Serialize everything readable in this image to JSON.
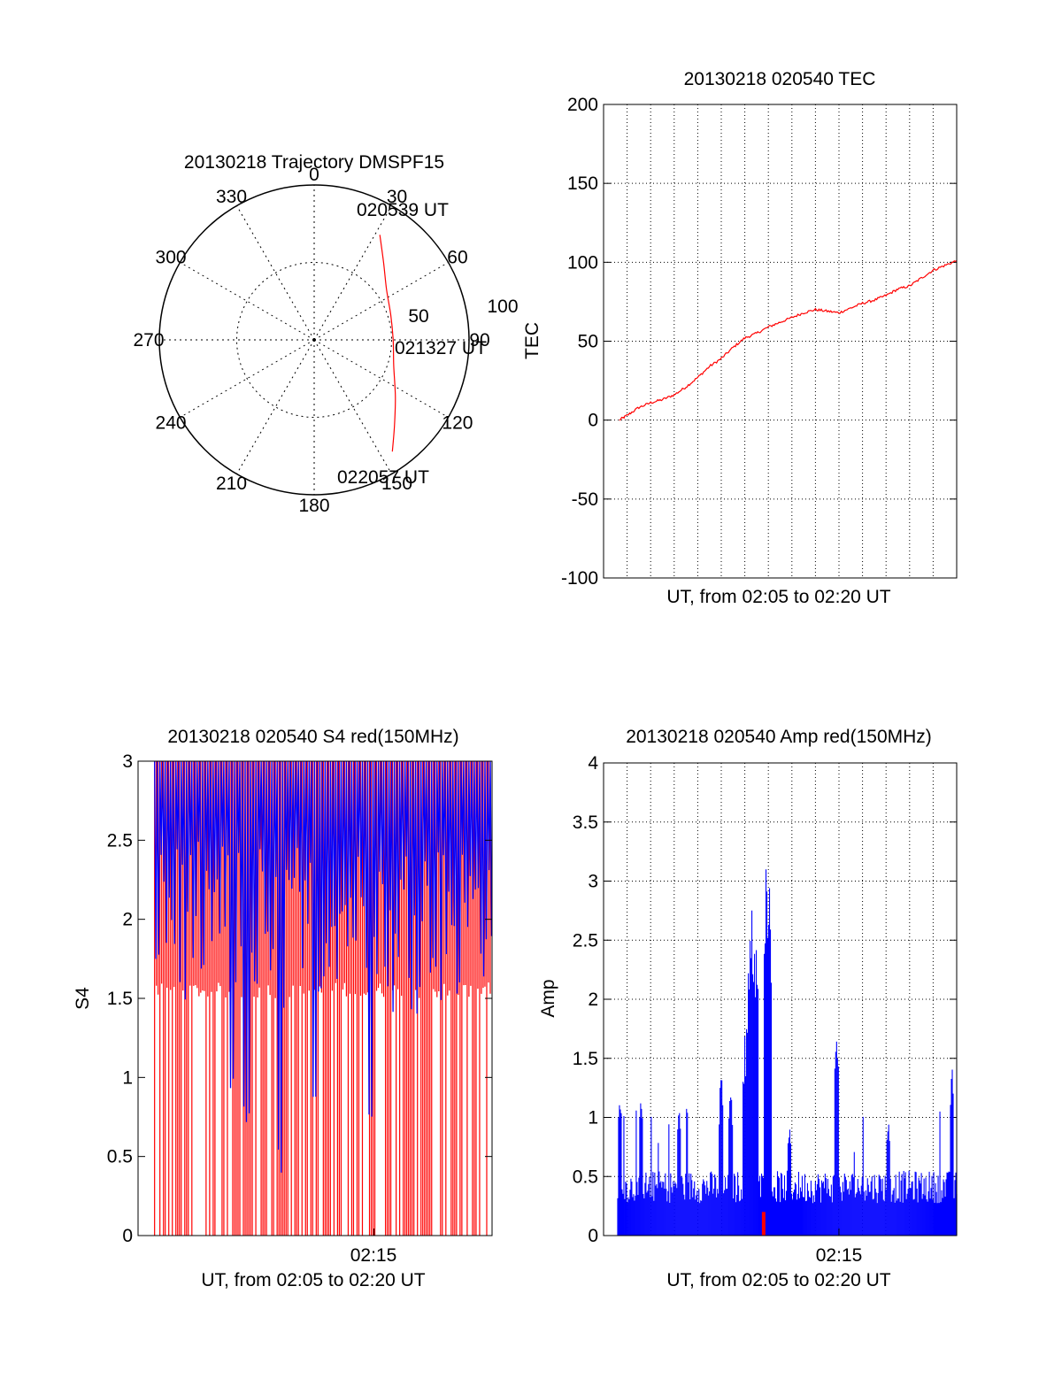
{
  "chart_data": [
    {
      "id": "trajectory",
      "type": "polar",
      "title": "20130218 Trajectory DMSPF15",
      "angle_labels": [
        "0",
        "30",
        "60",
        "90",
        "120",
        "150",
        "180",
        "210",
        "240",
        "270",
        "300",
        "330"
      ],
      "radius_labels": [
        "50",
        "100"
      ],
      "rmax": 100,
      "series": [
        {
          "color": "#ff0000",
          "points": [
            {
              "az": 32,
              "r": 80
            },
            {
              "az": 42,
              "r": 67
            },
            {
              "az": 55,
              "r": 57
            },
            {
              "az": 72,
              "r": 52
            },
            {
              "az": 90,
              "r": 51
            },
            {
              "az": 108,
              "r": 54
            },
            {
              "az": 125,
              "r": 64
            },
            {
              "az": 137,
              "r": 76
            },
            {
              "az": 145,
              "r": 88
            }
          ]
        }
      ],
      "annotations": [
        "020539 UT",
        "021327 UT",
        "022057 UT"
      ]
    },
    {
      "id": "tec",
      "type": "line",
      "title": "20130218 020540 TEC",
      "xlabel": "UT, from 02:05 to 02:20 UT",
      "ylabel": "TEC",
      "xlim": [
        0,
        15
      ],
      "ylim": [
        -100,
        200
      ],
      "yticks": [
        "-100",
        "-50",
        "0",
        "50",
        "100",
        "150",
        "200"
      ],
      "grid": true,
      "series": [
        {
          "color": "#ff0000",
          "x": [
            0.67,
            1.0,
            1.5,
            2.0,
            2.5,
            3.0,
            3.5,
            4.0,
            4.5,
            5.0,
            5.5,
            6.0,
            6.5,
            7.0,
            7.5,
            8.0,
            8.5,
            9.0,
            9.5,
            10.0,
            10.5,
            11.0,
            11.5,
            12.0,
            12.5,
            13.0,
            13.5,
            14.0,
            14.5,
            15.0
          ],
          "y": [
            0,
            3,
            8,
            11,
            13,
            16,
            21,
            27,
            34,
            39,
            46,
            52,
            55,
            59,
            62,
            65,
            68,
            70,
            69,
            68,
            71,
            74,
            76,
            79,
            83,
            85,
            90,
            95,
            98,
            101
          ]
        }
      ]
    },
    {
      "id": "s4",
      "type": "line",
      "title": "20130218 020540 S4 red(150MHz)",
      "xlabel": "UT, from 02:05 to 02:20 UT",
      "ylabel": "S4",
      "xlim": [
        0,
        15
      ],
      "ylim": [
        0,
        3
      ],
      "yticks": [
        "0",
        "0.5",
        "1",
        "1.5",
        "2",
        "2.5",
        "3"
      ],
      "xticks": [
        {
          "x": 10,
          "label": "02:15"
        }
      ],
      "series": [
        {
          "color": "#ff0000",
          "base": 1.5,
          "top": 3,
          "drop_fraction": 0.6
        },
        {
          "color": "#0000ff",
          "base": 2.1,
          "top": 3,
          "dips": [
            {
              "x": 4.0,
              "y": 0.9
            },
            {
              "x": 4.6,
              "y": 0.7
            },
            {
              "x": 6.0,
              "y": 0.35
            },
            {
              "x": 7.5,
              "y": 0.7
            },
            {
              "x": 9.8,
              "y": 0.75
            }
          ]
        }
      ]
    },
    {
      "id": "amp",
      "type": "bar",
      "title": "20130218 020540 Amp red(150MHz)",
      "xlabel": "UT, from 02:05 to 02:20 UT",
      "ylabel": "Amp",
      "xlim": [
        0,
        15
      ],
      "ylim": [
        0,
        4
      ],
      "yticks": [
        "0",
        "0.5",
        "1",
        "1.5",
        "2",
        "2.5",
        "3",
        "3.5",
        "4"
      ],
      "xticks": [
        {
          "x": 10,
          "label": "02:15"
        }
      ],
      "grid": true,
      "series": [
        {
          "color": "#0000ff",
          "base": 0.5,
          "peaks": [
            {
              "x": 0.7,
              "y": 1.3
            },
            {
              "x": 1.6,
              "y": 1.25
            },
            {
              "x": 3.2,
              "y": 1.2
            },
            {
              "x": 5.0,
              "y": 1.5
            },
            {
              "x": 5.4,
              "y": 1.3
            },
            {
              "x": 6.0,
              "y": 1.7
            },
            {
              "x": 6.3,
              "y": 2.8
            },
            {
              "x": 6.5,
              "y": 2.6
            },
            {
              "x": 6.9,
              "y": 3.18
            },
            {
              "x": 7.05,
              "y": 3.0
            },
            {
              "x": 7.9,
              "y": 1.0
            },
            {
              "x": 9.9,
              "y": 1.9
            },
            {
              "x": 12.1,
              "y": 1.1
            },
            {
              "x": 14.8,
              "y": 1.5
            }
          ]
        },
        {
          "color": "#ff0000",
          "marks": [
            {
              "x": 6.8,
              "y": 0.2
            }
          ]
        }
      ]
    }
  ]
}
